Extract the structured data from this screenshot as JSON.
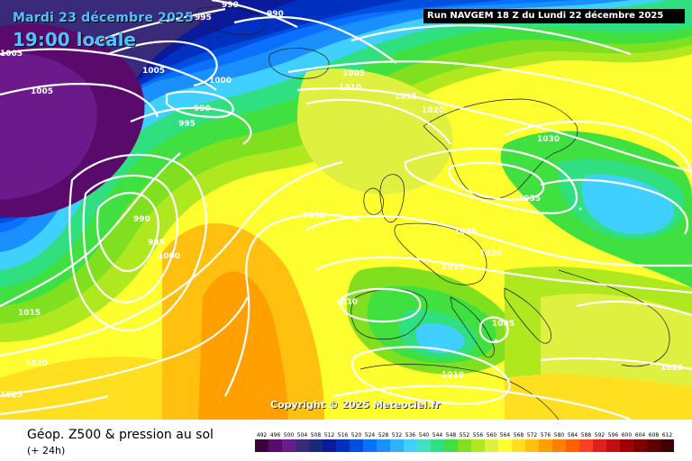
{
  "header": {
    "title": "Mardi 23 décembre 2025",
    "time": "19:00 locale",
    "run_info": "Run NAVGEM 18 Z du Lundi 22 décembre 2025"
  },
  "copyright": "Copyright © 2025 Meteociel.fr",
  "legend": {
    "title": "Géop. Z500 & pression au sol",
    "subtitle": "(+ 24h)",
    "ticks": [
      "492",
      "496",
      "500",
      "504",
      "508",
      "512",
      "516",
      "520",
      "524",
      "528",
      "532",
      "536",
      "540",
      "544",
      "548",
      "552",
      "556",
      "560",
      "564",
      "568",
      "572",
      "576",
      "580",
      "584",
      "588",
      "592",
      "596",
      "600",
      "604",
      "608",
      "612"
    ]
  },
  "colors": {
    "scale": [
      "#3b003b",
      "#5a0a6a",
      "#6a1a8a",
      "#3a2a7a",
      "#1a2a7a",
      "#0a1a9a",
      "#0030c0",
      "#0050e0",
      "#0a70ff",
      "#1a90ff",
      "#30b0ff",
      "#40d0ff",
      "#40e0c0",
      "#30e080",
      "#40e040",
      "#80e020",
      "#b0e820",
      "#e0f040",
      "#ffff30",
      "#ffe020",
      "#ffc010",
      "#ffa000",
      "#ff8000",
      "#ff6000",
      "#ff4020",
      "#e02020",
      "#c01010",
      "#a00000",
      "#800000",
      "#600000",
      "#400000"
    ]
  },
  "isobar_labels": [
    {
      "text": "995"
    },
    {
      "text": "990"
    },
    {
      "text": "990"
    },
    {
      "text": "1005"
    },
    {
      "text": "1005"
    },
    {
      "text": "1005"
    },
    {
      "text": "1000"
    },
    {
      "text": "990"
    },
    {
      "text": "995"
    },
    {
      "text": "1005"
    },
    {
      "text": "1010"
    },
    {
      "text": "1015"
    },
    {
      "text": "1020"
    },
    {
      "text": "1030"
    },
    {
      "text": "1035"
    },
    {
      "text": "990"
    },
    {
      "text": "995"
    },
    {
      "text": "1000"
    },
    {
      "text": "1030"
    },
    {
      "text": "1025"
    },
    {
      "text": "1020"
    },
    {
      "text": "1015"
    },
    {
      "text": "1010"
    },
    {
      "text": "1005"
    },
    {
      "text": "1010"
    },
    {
      "text": "1015"
    },
    {
      "text": "1020"
    },
    {
      "text": "1025"
    },
    {
      "text": "1020"
    }
  ]
}
